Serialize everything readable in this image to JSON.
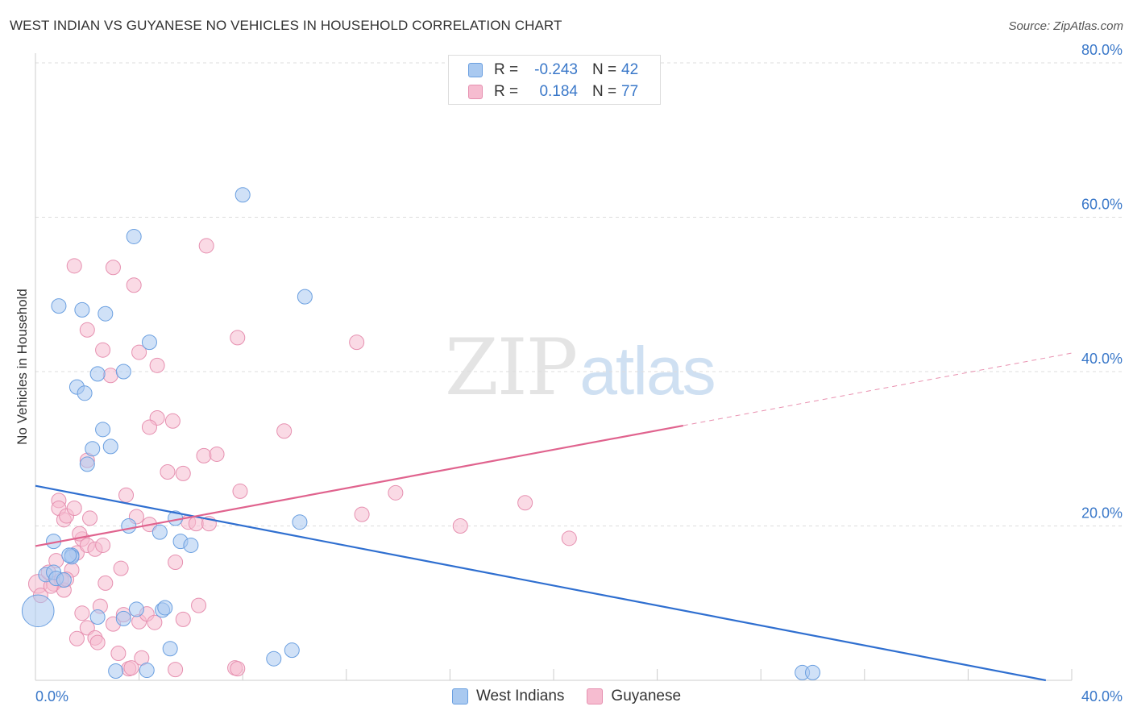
{
  "title": "WEST INDIAN VS GUYANESE NO VEHICLES IN HOUSEHOLD CORRELATION CHART",
  "source": "Source: ZipAtlas.com",
  "watermark": {
    "zip": "ZIP",
    "atlas": "atlas"
  },
  "colors": {
    "blue_fill": "#a9c9f0",
    "blue_stroke": "#6a9fe0",
    "blue_line": "#2f6fd0",
    "pink_fill": "#f6bcd0",
    "pink_stroke": "#e690b0",
    "pink_line": "#e0638e",
    "tick_label": "#3a78c9",
    "grid": "#dddddd"
  },
  "legend": {
    "rows": [
      {
        "r_label": "R =",
        "r_value": "-0.243",
        "n_label": "N =",
        "n_value": "42"
      },
      {
        "r_label": "R =",
        "r_value": "0.184",
        "n_label": "N =",
        "n_value": "77"
      }
    ]
  },
  "chart_data": {
    "type": "scatter",
    "ylabel": "No Vehicles in Household",
    "xlabel": "",
    "xlim": [
      0,
      40
    ],
    "ylim": [
      0,
      80
    ],
    "x_tick_labels": [
      "0.0%",
      "40.0%"
    ],
    "y_ticks": [
      20,
      40,
      60,
      80
    ],
    "y_tick_labels": [
      "20.0%",
      "40.0%",
      "60.0%",
      "80.0%"
    ],
    "grid": true,
    "legend_position": "bottom",
    "series": [
      {
        "name": "West Indians",
        "trend": {
          "x0": 0,
          "y0": 25.2,
          "x1": 39,
          "y1": 0,
          "dashed_to": null
        },
        "points": [
          [
            0.1,
            9,
            2.2
          ],
          [
            0.4,
            13.7,
            1
          ],
          [
            0.7,
            14,
            1
          ],
          [
            0.8,
            13.2,
            1
          ],
          [
            1.1,
            13,
            1
          ],
          [
            1.4,
            16.2,
            1
          ],
          [
            1.4,
            16,
            1
          ],
          [
            0.7,
            18,
            1
          ],
          [
            0.9,
            48.5,
            1
          ],
          [
            1.8,
            48,
            1
          ],
          [
            2.7,
            47.5,
            1
          ],
          [
            3.8,
            57.5,
            1
          ],
          [
            2.4,
            39.7,
            1
          ],
          [
            3.4,
            40,
            1
          ],
          [
            4.4,
            43.8,
            1
          ],
          [
            1.6,
            38,
            1
          ],
          [
            1.9,
            37.2,
            1
          ],
          [
            2.6,
            32.5,
            1
          ],
          [
            2.2,
            30,
            1
          ],
          [
            2.9,
            30.3,
            1
          ],
          [
            2.0,
            28,
            1
          ],
          [
            5.4,
            21,
            1
          ],
          [
            3.6,
            20,
            1
          ],
          [
            4.8,
            19.2,
            1
          ],
          [
            5.6,
            18,
            1
          ],
          [
            6.0,
            17.5,
            1
          ],
          [
            8.0,
            62.9,
            1
          ],
          [
            10.4,
            49.7,
            1
          ],
          [
            10.2,
            20.5,
            1
          ],
          [
            2.4,
            8.2,
            1
          ],
          [
            3.4,
            8,
            1
          ],
          [
            3.9,
            9.2,
            1
          ],
          [
            4.9,
            9.1,
            1
          ],
          [
            5.0,
            9.4,
            1
          ],
          [
            5.2,
            4.1,
            1
          ],
          [
            9.2,
            2.8,
            1
          ],
          [
            9.9,
            3.9,
            1
          ],
          [
            3.1,
            1.2,
            1
          ],
          [
            4.3,
            1.3,
            1
          ],
          [
            29.6,
            1,
            1
          ],
          [
            30.0,
            1,
            1
          ],
          [
            1.3,
            16.2,
            1
          ]
        ]
      },
      {
        "name": "Guyanese",
        "trend": {
          "x0": 0,
          "y0": 17.4,
          "x1": 25,
          "y1": 33,
          "dashed_to": {
            "x": 40,
            "y": 42.4
          }
        },
        "points": [
          [
            0.1,
            12.5,
            1.3
          ],
          [
            0.2,
            11,
            1
          ],
          [
            0.5,
            14,
            1
          ],
          [
            0.7,
            12.5,
            1
          ],
          [
            0.8,
            15.5,
            1
          ],
          [
            1.0,
            13,
            1
          ],
          [
            1.1,
            11.7,
            1
          ],
          [
            1.4,
            14.3,
            1
          ],
          [
            1.6,
            16.5,
            1
          ],
          [
            1.8,
            18.3,
            1
          ],
          [
            1.7,
            19,
            1
          ],
          [
            2.0,
            17.5,
            1
          ],
          [
            2.1,
            21,
            1
          ],
          [
            2.3,
            17,
            1
          ],
          [
            2.6,
            17.5,
            1
          ],
          [
            0.9,
            23.3,
            1
          ],
          [
            0.9,
            22.3,
            1
          ],
          [
            1.1,
            20.8,
            1
          ],
          [
            1.2,
            21.3,
            1
          ],
          [
            1.5,
            22.3,
            1
          ],
          [
            1.5,
            53.7,
            1
          ],
          [
            3.0,
            53.5,
            1
          ],
          [
            3.8,
            51.2,
            1
          ],
          [
            2.0,
            45.4,
            1
          ],
          [
            2.6,
            42.8,
            1
          ],
          [
            4.0,
            42.5,
            1
          ],
          [
            4.7,
            40.8,
            1
          ],
          [
            2.9,
            39.5,
            1
          ],
          [
            6.6,
            56.3,
            1
          ],
          [
            7.8,
            44.4,
            1
          ],
          [
            12.4,
            43.8,
            1
          ],
          [
            4.7,
            34,
            1
          ],
          [
            5.3,
            33.6,
            1
          ],
          [
            4.4,
            32.8,
            1
          ],
          [
            9.6,
            32.3,
            1
          ],
          [
            2.0,
            28.5,
            1
          ],
          [
            5.1,
            27,
            1
          ],
          [
            5.7,
            26.8,
            1
          ],
          [
            6.5,
            29.1,
            1
          ],
          [
            7.0,
            29.3,
            1
          ],
          [
            3.5,
            24,
            1
          ],
          [
            7.9,
            24.5,
            1
          ],
          [
            13.9,
            24.3,
            1
          ],
          [
            18.9,
            23,
            1
          ],
          [
            3.9,
            21.2,
            1
          ],
          [
            4.4,
            20.2,
            1
          ],
          [
            5.9,
            20.5,
            1
          ],
          [
            6.2,
            20.3,
            1
          ],
          [
            6.7,
            20.3,
            1
          ],
          [
            12.6,
            21.5,
            1
          ],
          [
            16.4,
            20,
            1
          ],
          [
            20.6,
            18.4,
            1
          ],
          [
            5.4,
            15.3,
            1
          ],
          [
            3.3,
            14.5,
            1
          ],
          [
            2.7,
            12.6,
            1
          ],
          [
            2.5,
            9.6,
            1
          ],
          [
            1.8,
            8.7,
            1
          ],
          [
            2.0,
            6.8,
            1
          ],
          [
            2.3,
            5.5,
            1
          ],
          [
            1.6,
            5.4,
            1
          ],
          [
            2.4,
            4.9,
            1
          ],
          [
            3.0,
            7.3,
            1
          ],
          [
            3.4,
            8.5,
            1
          ],
          [
            4.0,
            7.6,
            1
          ],
          [
            4.3,
            8.6,
            1
          ],
          [
            4.6,
            7.5,
            1
          ],
          [
            5.7,
            7.9,
            1
          ],
          [
            6.3,
            9.7,
            1
          ],
          [
            3.2,
            3.5,
            1
          ],
          [
            4.1,
            2.9,
            1
          ],
          [
            3.6,
            1.5,
            1
          ],
          [
            3.7,
            1.6,
            1
          ],
          [
            5.4,
            1.4,
            1
          ],
          [
            7.7,
            1.6,
            1
          ],
          [
            7.8,
            1.5,
            1
          ],
          [
            0.6,
            12.2,
            1
          ],
          [
            1.2,
            13.1,
            1
          ]
        ]
      }
    ]
  }
}
